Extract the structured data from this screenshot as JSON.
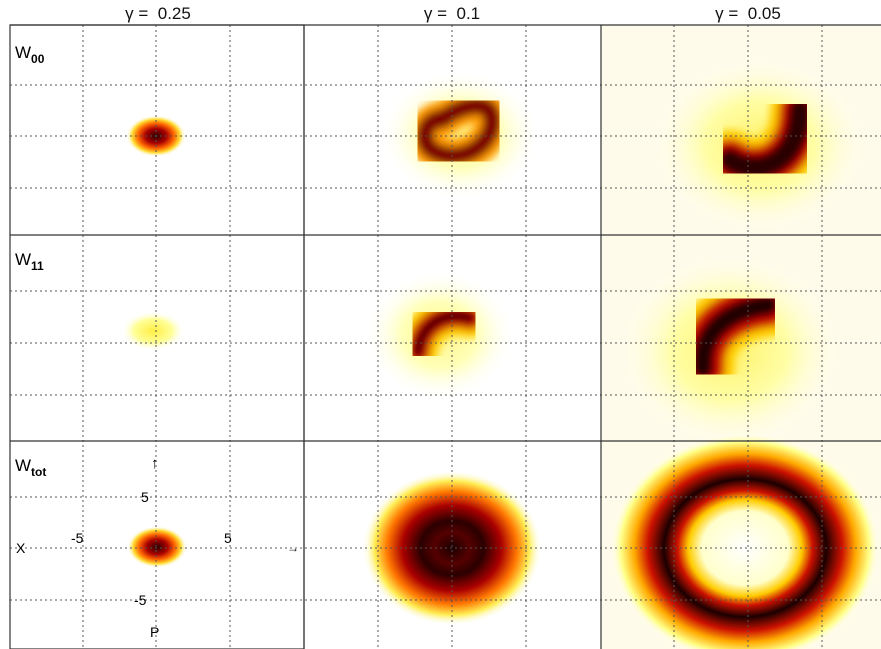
{
  "columns": [
    {
      "symbol": "γ",
      "value": "0.25"
    },
    {
      "symbol": "γ",
      "value": "0.1"
    },
    {
      "symbol": "γ",
      "value": "0.05"
    }
  ],
  "rows": [
    {
      "base": "W",
      "sub": "00"
    },
    {
      "base": "W",
      "sub": "11"
    },
    {
      "base": "W",
      "sub": "tot"
    }
  ],
  "axes": {
    "x_label": "X",
    "y_label": "P",
    "tick_pos_5": "5",
    "tick_neg_5": "-5"
  },
  "colors": {
    "colormap": [
      "#ffffff",
      "#ffff66",
      "#ffcc00",
      "#ff8800",
      "#dd2200",
      "#990000",
      "#2a0000"
    ],
    "grid": "#555555",
    "frame": "#333333"
  }
}
